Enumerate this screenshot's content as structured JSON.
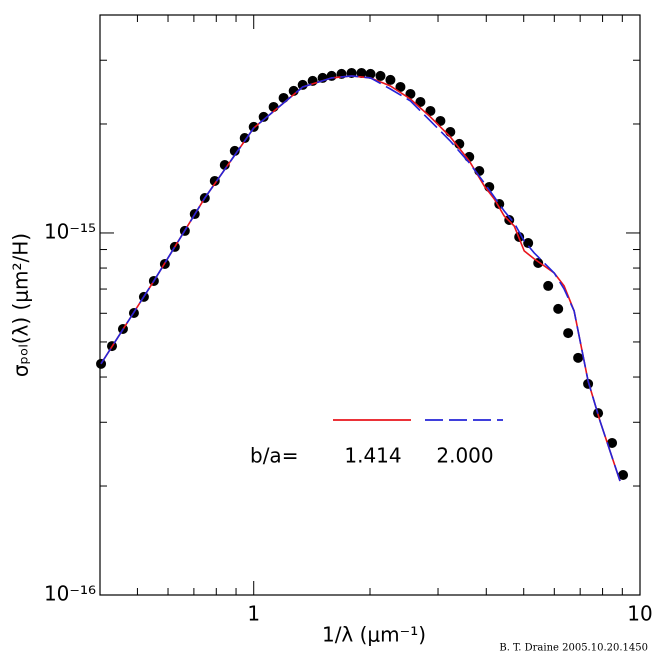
{
  "chart_data": {
    "type": "scatter",
    "xlabel": "1/λ (μm⁻¹)",
    "ylabel": "σₚₒₗ(λ) (μm²/H)",
    "xlog": true,
    "ylog": true,
    "xlim": [
      0.4,
      10
    ],
    "ylim": [
      1e-16,
      4e-15
    ],
    "xticks": [
      1,
      10
    ],
    "yticks": [
      {
        "value": 1e-16,
        "label": "10⁻¹⁶"
      },
      {
        "value": 1e-15,
        "label": "10⁻¹⁵"
      }
    ],
    "xminorticks": [
      0.5,
      0.6,
      0.7,
      0.8,
      0.9,
      2,
      3,
      4,
      5,
      6,
      7,
      8,
      9
    ],
    "yminorticks": [
      2e-16,
      3e-16,
      4e-16,
      5e-16,
      6e-16,
      7e-16,
      8e-16,
      9e-16,
      2e-15,
      3e-15,
      4e-15
    ],
    "legend_title": "b/a=",
    "credit": "B. T. Draine 2005.10.20.1450",
    "series": [
      {
        "mode": "markers",
        "color": "#000000",
        "x": [
          0.4025,
          0.4297,
          0.4586,
          0.4897,
          0.5197,
          0.5515,
          0.5888,
          0.6249,
          0.6633,
          0.7036,
          0.7471,
          0.7929,
          0.8416,
          0.8933,
          0.9478,
          1.0,
          1.061,
          1.126,
          1.195,
          1.269,
          1.339,
          1.421,
          1.508,
          1.591,
          1.688,
          1.792,
          1.901,
          2.006,
          2.129,
          2.259,
          2.398,
          2.545,
          2.701,
          2.867,
          3.043,
          3.228,
          3.406,
          3.614,
          3.837,
          4.072,
          4.322,
          4.587,
          4.867,
          5.135,
          5.451,
          5.785,
          6.141,
          6.516,
          6.916,
          7.339,
          7.79,
          8.466,
          9.04
        ],
        "values": [
          4.35e-16,
          4.87e-16,
          5.43e-16,
          6.01e-16,
          6.66e-16,
          7.37e-16,
          8.21e-16,
          9.15e-16,
          1.013e-15,
          1.128e-15,
          1.249e-15,
          1.392e-15,
          1.541e-15,
          1.685e-15,
          1.829e-15,
          1.963e-15,
          2.092e-15,
          2.229e-15,
          2.36e-15,
          2.468e-15,
          2.564e-15,
          2.63e-15,
          2.681e-15,
          2.715e-15,
          2.75e-15,
          2.767e-15,
          2.767e-15,
          2.75e-15,
          2.715e-15,
          2.647e-15,
          2.531e-15,
          2.421e-15,
          2.301e-15,
          2.173e-15,
          2.039e-15,
          1.901e-15,
          1.762e-15,
          1.622e-15,
          1.483e-15,
          1.34e-15,
          1.202e-15,
          1.086e-15,
          9.75e-16,
          9.38e-16,
          8.26e-16,
          7.14e-16,
          6.17e-16,
          5.29e-16,
          4.52e-16,
          3.83e-16,
          3.18e-16,
          2.63e-16,
          2.145e-16
        ]
      },
      {
        "name": "1.414",
        "mode": "line",
        "color": "#e8141c",
        "x": [
          0.4025,
          0.5515,
          0.7471,
          1.0,
          1.339,
          1.591,
          1.792,
          2.006,
          2.259,
          2.545,
          2.867,
          3.228,
          3.614,
          3.953,
          4.195,
          4.452,
          4.725,
          5.015,
          5.323,
          5.648,
          5.995,
          6.362,
          6.752,
          7.339,
          7.881,
          8.877
        ],
        "values": [
          4.35e-16,
          7.37e-16,
          1.249e-15,
          1.95e-15,
          2.531e-15,
          2.681e-15,
          2.715e-15,
          2.681e-15,
          2.547e-15,
          2.345e-15,
          2.092e-15,
          1.842e-15,
          1.58e-15,
          1.348e-15,
          1.241e-15,
          1.114e-15,
          1.045e-15,
          8.92e-16,
          8.48e-16,
          8.11e-16,
          7.75e-16,
          7.14e-16,
          6.09e-16,
          3.9e-16,
          3.02e-16,
          2.065e-16
        ]
      },
      {
        "name": "2.000",
        "mode": "dash",
        "color": "#2424d8",
        "x": [
          0.4025,
          0.5515,
          0.7471,
          1.0,
          1.339,
          1.591,
          1.792,
          2.006,
          2.259,
          2.545,
          2.867,
          3.228,
          3.614,
          3.953,
          4.195,
          4.452,
          4.725,
          5.015,
          5.323,
          5.648,
          5.995,
          6.362,
          6.752,
          7.339,
          7.881,
          8.877
        ],
        "values": [
          4.35e-16,
          7.37e-16,
          1.249e-15,
          1.95e-15,
          2.531e-15,
          2.681e-15,
          2.715e-15,
          2.681e-15,
          2.499e-15,
          2.316e-15,
          2.039e-15,
          1.795e-15,
          1.561e-15,
          1.374e-15,
          1.257e-15,
          1.15e-15,
          1.066e-15,
          9.5e-16,
          8.81e-16,
          8.26e-16,
          7.75e-16,
          7e-16,
          6.09e-16,
          3.9e-16,
          3.02e-16,
          2.065e-16
        ]
      }
    ]
  }
}
